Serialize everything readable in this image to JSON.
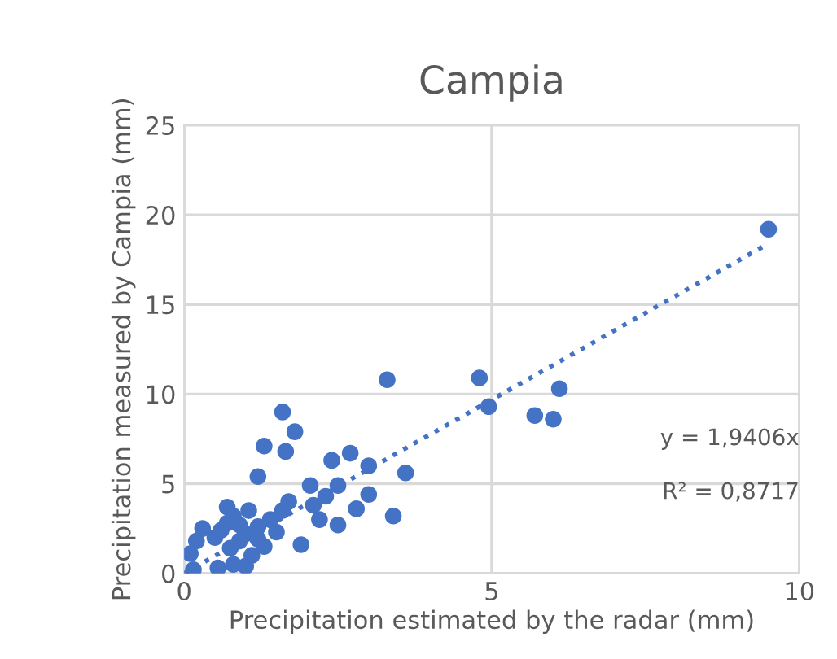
{
  "chart_data": {
    "type": "scatter",
    "title": "Campia",
    "xlabel": "Precipitation estimated by the radar (mm)",
    "ylabel": "Precipitation measured by Campia (mm)",
    "xlim": [
      0,
      10
    ],
    "ylim": [
      0,
      25
    ],
    "xticks": [
      0,
      5,
      10
    ],
    "yticks": [
      0,
      5,
      10,
      15,
      20,
      25
    ],
    "grid": true,
    "marker": "circle",
    "series": [
      {
        "color": "#4472c4",
        "x": [
          9.5,
          3.3,
          4.8,
          4.95,
          6.1,
          5.7,
          6.0,
          3.6,
          3.4,
          1.6,
          1.8,
          1.3,
          1.65,
          2.4,
          2.7,
          3.0,
          1.2,
          3.0,
          2.8,
          2.5,
          1.9,
          2.05,
          2.5,
          2.1,
          1.6,
          1.05,
          0.7,
          0.3,
          0.5,
          0.55,
          0.6,
          0.7,
          0.75,
          0.8,
          0.9,
          1.0,
          1.1,
          1.2,
          1.3,
          1.4,
          0.2,
          0.8,
          1.0,
          1.2,
          0.9,
          1.5,
          1.7,
          2.2,
          2.3,
          0.1,
          0.15
        ],
        "values": [
          19.2,
          10.8,
          10.9,
          9.3,
          10.3,
          8.8,
          8.6,
          5.6,
          3.2,
          9.0,
          7.9,
          7.1,
          6.8,
          6.3,
          6.7,
          6.0,
          5.4,
          4.4,
          3.6,
          2.7,
          1.6,
          4.9,
          4.9,
          3.8,
          3.5,
          3.5,
          3.7,
          2.5,
          2.0,
          0.3,
          2.4,
          2.8,
          1.4,
          0.5,
          1.8,
          2.2,
          1.0,
          2.6,
          1.5,
          3.0,
          1.8,
          3.2,
          0.4,
          1.9,
          2.7,
          2.3,
          4.0,
          3.0,
          4.3,
          1.1,
          0.2
        ]
      },
      {
        "type": "line",
        "color": "#4472c4",
        "line_style": "dotted",
        "marker": "none",
        "x": [
          0,
          9.5
        ],
        "values": [
          0,
          18.4
        ]
      }
    ],
    "annotations": [
      "y = 1,9406x",
      "R² = 0,8717"
    ]
  }
}
